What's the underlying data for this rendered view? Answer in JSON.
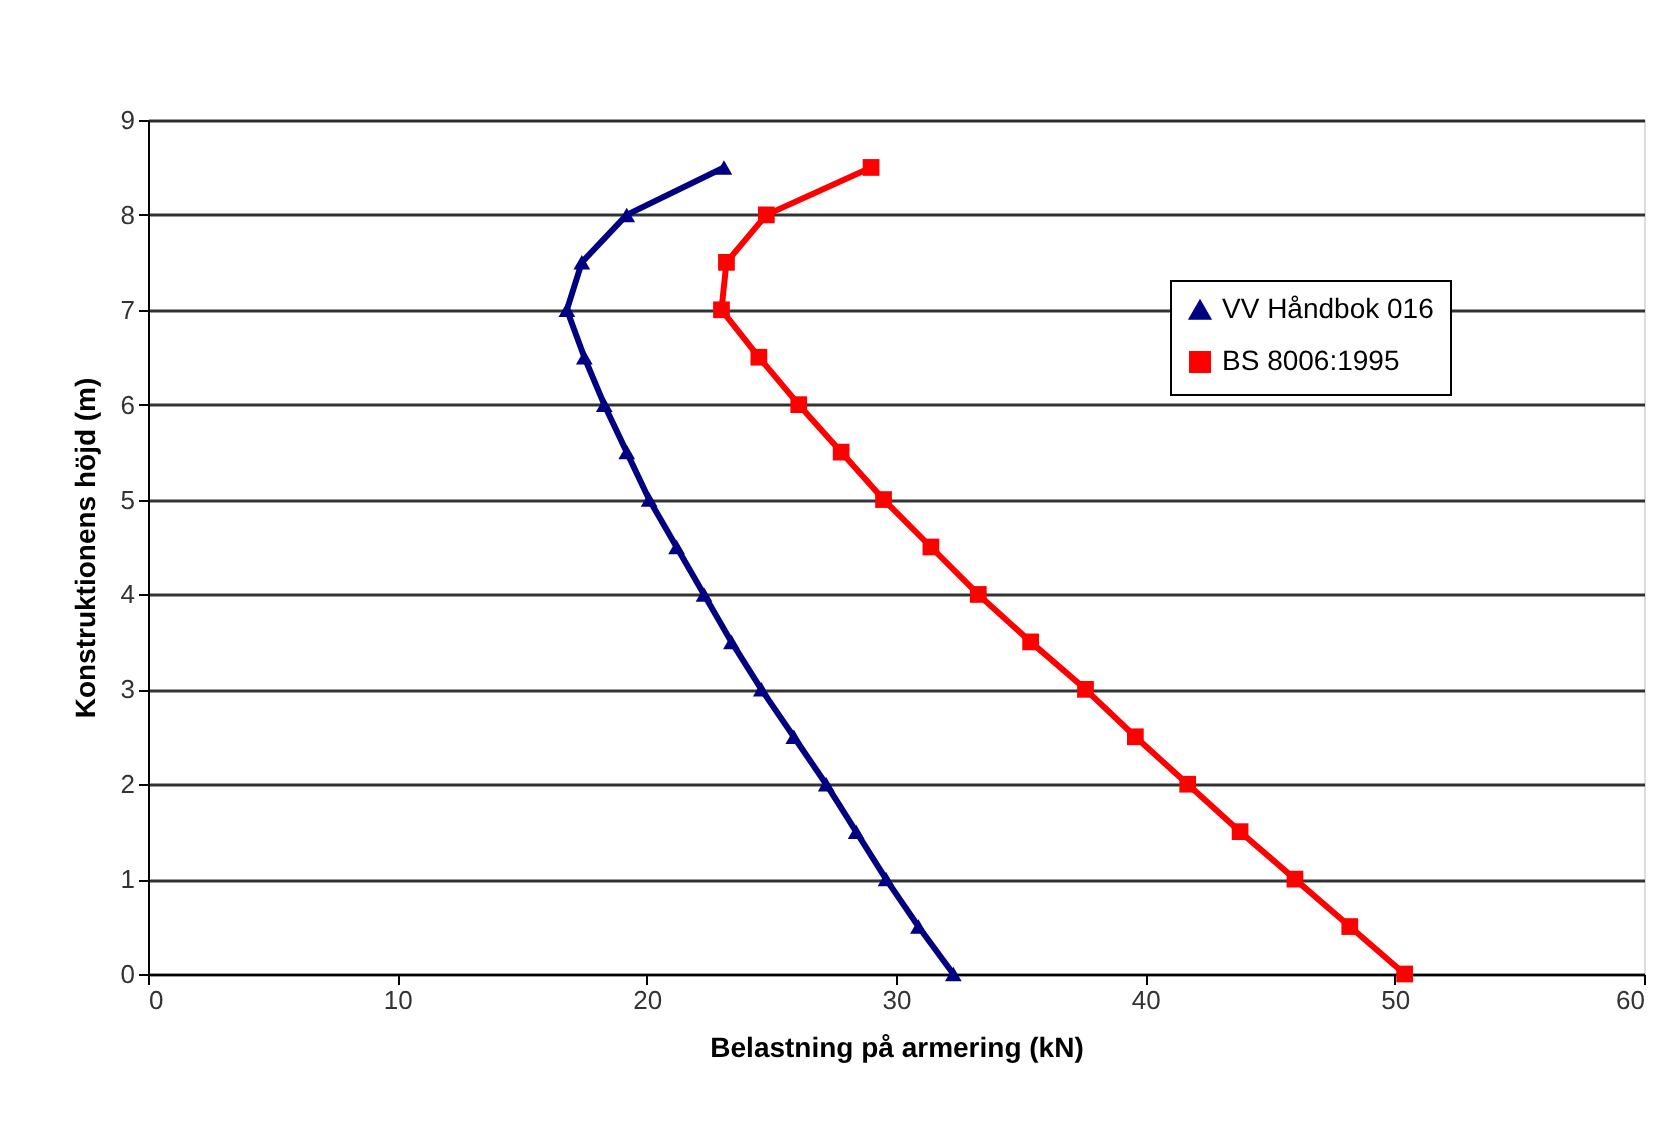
{
  "chart_data": {
    "type": "line",
    "xlabel": "Belastning på armering (kN)",
    "ylabel": "Konstruktionens höjd (m)",
    "xlim": [
      0,
      60
    ],
    "xticks": [
      0,
      10,
      20,
      30,
      40,
      50,
      60
    ],
    "ylim": [
      0,
      9
    ],
    "yticks": [
      0,
      1,
      2,
      3,
      4,
      5,
      6,
      7,
      8,
      9
    ],
    "grid": "y",
    "legend": "right",
    "line_style": "solid",
    "series": [
      {
        "name": "VV Håndbok 016",
        "color": "#000080",
        "marker": "triangle",
        "x": [
          32.3,
          30.9,
          29.6,
          28.4,
          27.2,
          25.9,
          24.6,
          23.4,
          22.3,
          21.2,
          20.1,
          19.2,
          18.3,
          17.5,
          16.8,
          17.4,
          19.2,
          23.1
        ],
        "values": [
          0,
          0.5,
          1,
          1.5,
          2,
          2.5,
          3,
          3.5,
          4,
          4.5,
          5,
          5.5,
          6,
          6.5,
          7,
          7.5,
          8,
          8.5
        ]
      },
      {
        "name": "BS 8006:1995",
        "color": "#ff0000",
        "marker": "square",
        "x": [
          50.4,
          48.2,
          46.0,
          43.8,
          41.7,
          39.6,
          37.6,
          35.4,
          33.3,
          31.4,
          29.5,
          27.8,
          26.1,
          24.5,
          23.0,
          23.2,
          24.8,
          29.0
        ],
        "values": [
          0,
          0.5,
          1,
          1.5,
          2,
          2.5,
          3,
          3.5,
          4,
          4.5,
          5,
          5.5,
          6,
          6.5,
          7,
          7.5,
          8,
          8.5
        ]
      }
    ]
  }
}
